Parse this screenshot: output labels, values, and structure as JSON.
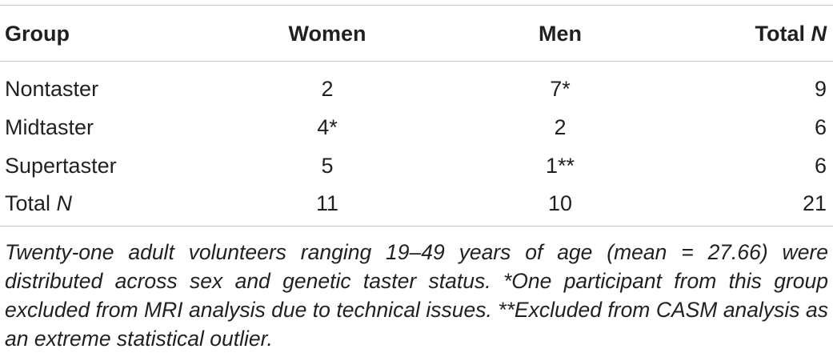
{
  "table": {
    "header": {
      "group": "Group",
      "women": "Women",
      "men": "Men",
      "total_prefix": "Total ",
      "total_italic": "N"
    },
    "rows": [
      {
        "group": "Nontaster",
        "women": "2",
        "men": "7*",
        "total": "9"
      },
      {
        "group": "Midtaster",
        "women": "4*",
        "men": "2",
        "total": "6"
      },
      {
        "group": "Supertaster",
        "women": "5",
        "men": "1**",
        "total": "6"
      },
      {
        "group_prefix": "Total ",
        "group_italic": "N",
        "women": "11",
        "men": "10",
        "total": "21"
      }
    ]
  },
  "footnote": "Twenty-one adult volunteers ranging 19–49 years of age (mean = 27.66) were distributed across sex and genetic taster status. *One participant from this group excluded from MRI analysis due to technical issues. **Excluded from CASM analysis as an extreme statistical outlier."
}
